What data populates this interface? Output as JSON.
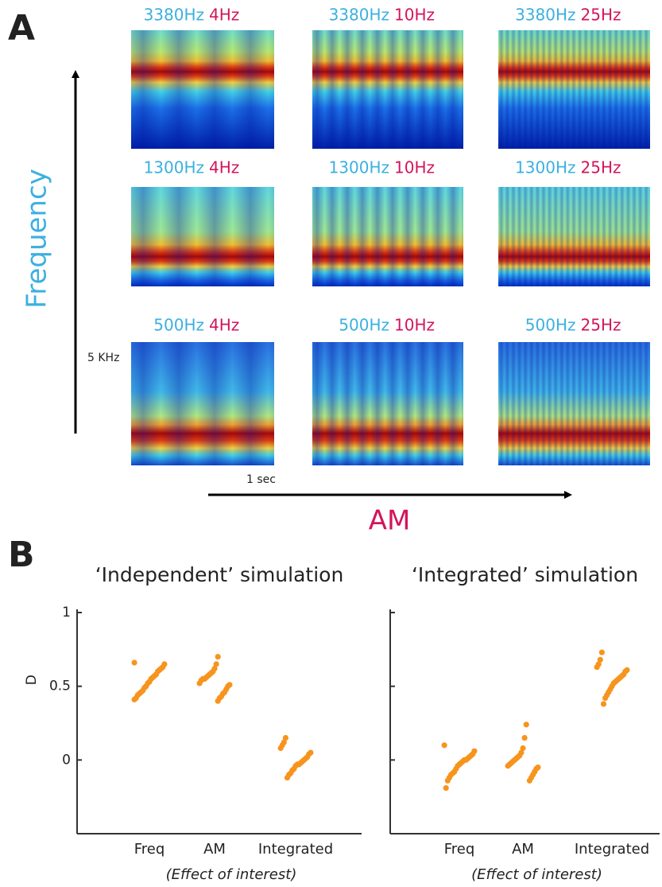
{
  "panel_a": {
    "label": "A",
    "carriers": [
      "3380Hz",
      "1300Hz",
      "500Hz"
    ],
    "rates": [
      "4Hz",
      "10Hz",
      "25Hz"
    ],
    "y_axis_label": "Frequency",
    "x_axis_label": "AM",
    "scale_frequency": "5 KHz",
    "scale_time": "1 sec"
  },
  "panel_b": {
    "label": "B"
  },
  "chart_data": [
    {
      "type": "strip",
      "title": "‘Independent’ simulation",
      "ylabel": "D",
      "xlabel": "(Effect of interest)",
      "categories": [
        "Freq",
        "AM",
        "Integrated"
      ],
      "color": "#f7941d",
      "values": [
        [
          0.66,
          0.65,
          0.63,
          0.62,
          0.61,
          0.6,
          0.58,
          0.57,
          0.56,
          0.55,
          0.53,
          0.52,
          0.5,
          0.49,
          0.47,
          0.46,
          0.45,
          0.44,
          0.42,
          0.41
        ],
        [
          0.7,
          0.65,
          0.62,
          0.6,
          0.59,
          0.58,
          0.57,
          0.56,
          0.55,
          0.55,
          0.54,
          0.52,
          0.51,
          0.5,
          0.48,
          0.46,
          0.45,
          0.43,
          0.42,
          0.4
        ],
        [
          0.15,
          0.12,
          0.1,
          0.08,
          0.05,
          0.04,
          0.02,
          0.01,
          0.0,
          -0.01,
          -0.02,
          -0.03,
          -0.03,
          -0.04,
          -0.06,
          -0.07,
          -0.09,
          -0.1,
          -0.12
        ]
      ],
      "ylim": [
        -0.5,
        1
      ],
      "yticks": [
        0,
        0.5,
        1
      ],
      "show_tick_labels": true
    },
    {
      "type": "strip",
      "title": "‘Integrated’ simulation",
      "xlabel": "(Effect of interest)",
      "categories": [
        "Freq",
        "AM",
        "Integrated"
      ],
      "color": "#f7941d",
      "values": [
        [
          0.1,
          0.06,
          0.04,
          0.03,
          0.02,
          0.01,
          0.0,
          0.0,
          -0.01,
          -0.02,
          -0.03,
          -0.04,
          -0.06,
          -0.08,
          -0.09,
          -0.1,
          -0.12,
          -0.14,
          -0.19
        ],
        [
          0.24,
          0.15,
          0.08,
          0.05,
          0.03,
          0.02,
          0.01,
          0.0,
          -0.01,
          -0.02,
          -0.03,
          -0.04,
          -0.05,
          -0.06,
          -0.08,
          -0.1,
          -0.12,
          -0.14
        ],
        [
          0.73,
          0.68,
          0.65,
          0.63,
          0.61,
          0.6,
          0.58,
          0.57,
          0.56,
          0.55,
          0.54,
          0.53,
          0.52,
          0.5,
          0.48,
          0.46,
          0.44,
          0.42,
          0.38
        ]
      ],
      "ylim": [
        -0.5,
        1
      ],
      "yticks": [
        0,
        0.5,
        1
      ],
      "show_tick_labels": false
    }
  ]
}
